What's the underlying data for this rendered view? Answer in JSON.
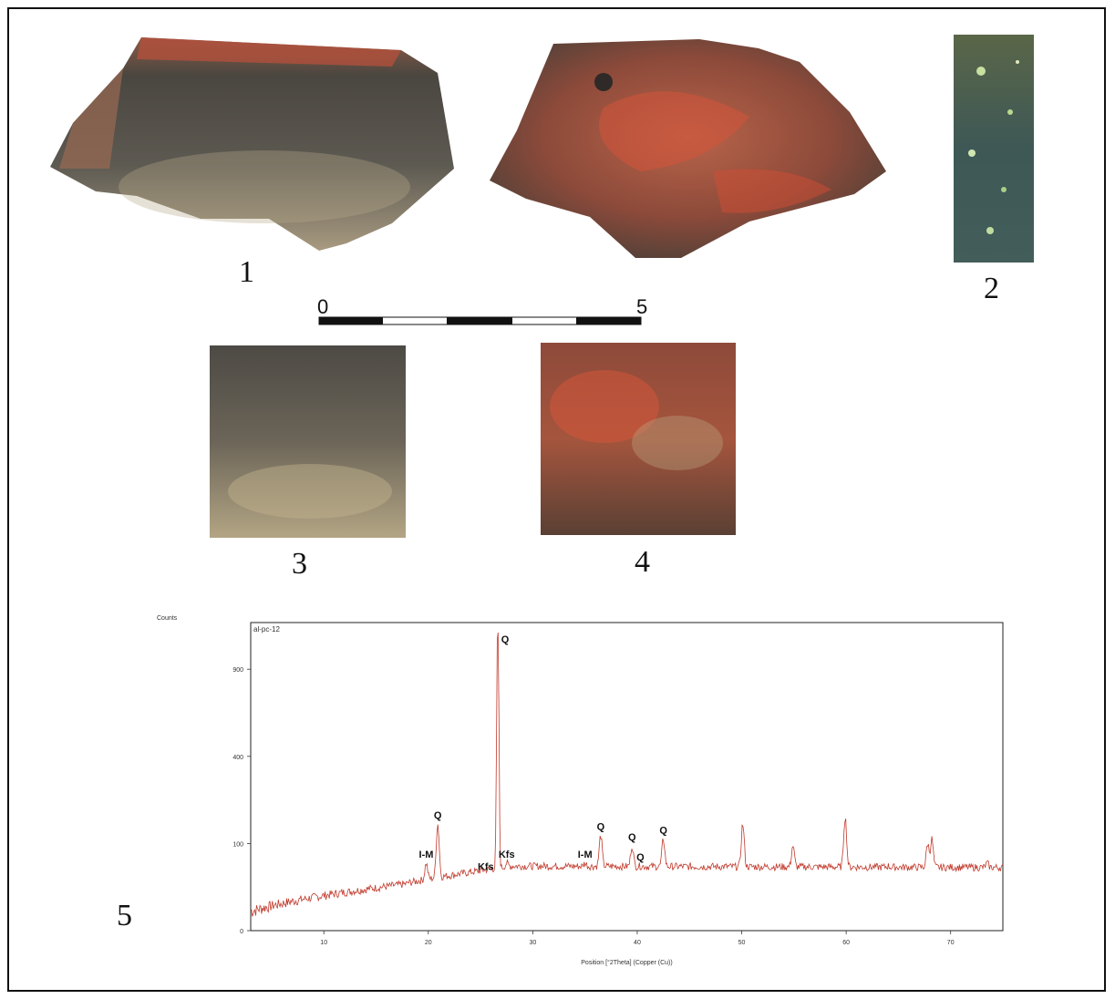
{
  "labels": {
    "fig1": "1",
    "fig2": "2",
    "fig3": "3",
    "fig4": "4",
    "fig5": "5"
  },
  "scale_bar": {
    "start": "0",
    "end": "5"
  },
  "colors": {
    "frame": "#111111",
    "spectrum": "#c0392b",
    "plot_border": "#222222"
  },
  "chart_data": {
    "type": "line",
    "title": "al-pc-12",
    "xlabel": "Position [°2Theta] (Copper (Cu))",
    "ylabel": "Counts",
    "x_ticks": [
      10,
      20,
      30,
      40,
      50,
      60,
      70
    ],
    "y_ticks": [
      0,
      100,
      400,
      900
    ],
    "xlim": [
      3,
      75
    ],
    "y_scale": "sqrt",
    "ylim": [
      0,
      1250
    ],
    "peaks": [
      {
        "x": 19.8,
        "y": 60,
        "label": "I-M"
      },
      {
        "x": 20.9,
        "y": 150,
        "label": "Q"
      },
      {
        "x": 25.5,
        "y": 40,
        "label": "Kfs"
      },
      {
        "x": 26.65,
        "y": 1250,
        "label": "Q"
      },
      {
        "x": 27.5,
        "y": 60,
        "label": "Kfs"
      },
      {
        "x": 35.0,
        "y": 60,
        "label": "I-M"
      },
      {
        "x": 36.5,
        "y": 120,
        "label": "Q"
      },
      {
        "x": 39.5,
        "y": 95,
        "label": "Q"
      },
      {
        "x": 40.3,
        "y": 55,
        "label": "Q"
      },
      {
        "x": 42.5,
        "y": 110,
        "label": "Q"
      },
      {
        "x": 45.8,
        "y": 50,
        "label": ""
      },
      {
        "x": 50.1,
        "y": 150,
        "label": ""
      },
      {
        "x": 54.9,
        "y": 95,
        "label": ""
      },
      {
        "x": 59.9,
        "y": 170,
        "label": ""
      },
      {
        "x": 64.0,
        "y": 55,
        "label": ""
      },
      {
        "x": 67.8,
        "y": 100,
        "label": ""
      },
      {
        "x": 68.2,
        "y": 110,
        "label": ""
      },
      {
        "x": 73.5,
        "y": 60,
        "label": ""
      }
    ]
  }
}
